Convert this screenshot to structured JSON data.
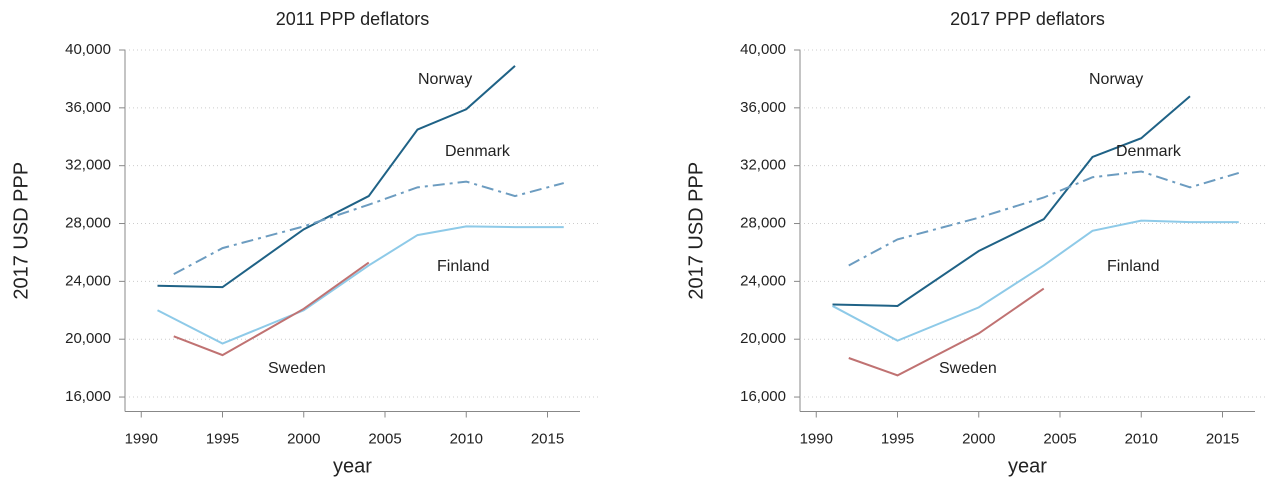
{
  "chart_data": [
    {
      "type": "line",
      "title": "2011 PPP deflators",
      "x_label": "year",
      "y_label": "2017 USD PPP",
      "xlim": [
        1989,
        2017
      ],
      "xticks": [
        1990,
        1995,
        2000,
        2005,
        2010,
        2015
      ],
      "ylim": [
        15000,
        40000
      ],
      "yticks": [
        {
          "value": 16000,
          "label": "16,000"
        },
        {
          "value": 20000,
          "label": "20,000"
        },
        {
          "value": 24000,
          "label": "24,000"
        },
        {
          "value": 28000,
          "label": "28,000"
        },
        {
          "value": 32000,
          "label": "32,000"
        },
        {
          "value": 36000,
          "label": "36,000"
        },
        {
          "value": 40000,
          "label": "40,000"
        }
      ],
      "grid": true,
      "series": [
        {
          "name": "Norway",
          "color": "#1f6286",
          "x": [
            1991,
            1995,
            2000,
            2004,
            2007,
            2010,
            2013
          ],
          "values": [
            23700,
            23600,
            27600,
            29900,
            34500,
            35900,
            38900
          ]
        },
        {
          "name": "Denmark",
          "color": "#6c9cc0",
          "dash": "dashdot",
          "x": [
            1992,
            1995,
            2000,
            2004,
            2007,
            2010,
            2013,
            2016
          ],
          "values": [
            24500,
            26300,
            27800,
            29300,
            30500,
            30900,
            29900,
            30800
          ]
        },
        {
          "name": "Finland",
          "color": "#8ecae8",
          "x": [
            1991,
            1995,
            2000,
            2004,
            2007,
            2010,
            2013,
            2016
          ],
          "values": [
            22000,
            19700,
            22000,
            25100,
            27200,
            27800,
            27750,
            27750
          ]
        },
        {
          "name": "Sweden",
          "color": "#c07272",
          "x": [
            1992,
            1995,
            2000,
            2004
          ],
          "values": [
            20200,
            18900,
            22100,
            25300
          ]
        }
      ]
    },
    {
      "type": "line",
      "title": "2017 PPP deflators",
      "x_label": "year",
      "y_label": "2017 USD PPP",
      "xlim": [
        1989,
        2017
      ],
      "xticks": [
        1990,
        1995,
        2000,
        2005,
        2010,
        2015
      ],
      "ylim": [
        15000,
        40000
      ],
      "yticks": [
        {
          "value": 16000,
          "label": "16,000"
        },
        {
          "value": 20000,
          "label": "20,000"
        },
        {
          "value": 24000,
          "label": "24,000"
        },
        {
          "value": 28000,
          "label": "28,000"
        },
        {
          "value": 32000,
          "label": "32,000"
        },
        {
          "value": 36000,
          "label": "36,000"
        },
        {
          "value": 40000,
          "label": "40,000"
        }
      ],
      "grid": true,
      "series": [
        {
          "name": "Norway",
          "color": "#1f6286",
          "x": [
            1991,
            1995,
            2000,
            2004,
            2007,
            2010,
            2013
          ],
          "values": [
            22400,
            22300,
            26100,
            28300,
            32600,
            33900,
            36800
          ]
        },
        {
          "name": "Denmark",
          "color": "#6c9cc0",
          "dash": "dashdot",
          "x": [
            1992,
            1995,
            2000,
            2004,
            2007,
            2010,
            2013,
            2016
          ],
          "values": [
            25100,
            26900,
            28400,
            29800,
            31200,
            31600,
            30500,
            31500
          ]
        },
        {
          "name": "Finland",
          "color": "#8ecae8",
          "x": [
            1991,
            1995,
            2000,
            2004,
            2007,
            2010,
            2013,
            2016
          ],
          "values": [
            22300,
            19900,
            22200,
            25100,
            27500,
            28200,
            28100,
            28100
          ]
        },
        {
          "name": "Sweden",
          "color": "#c07272",
          "x": [
            1992,
            1995,
            2000,
            2004
          ],
          "values": [
            18700,
            17500,
            20400,
            23500
          ]
        }
      ]
    }
  ]
}
